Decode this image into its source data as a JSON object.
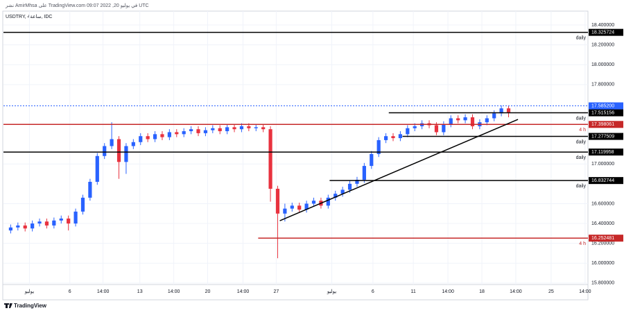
{
  "chart_data": {
    "type": "candlestick",
    "publisher": "نشر AmirMhsa على TradingView.com في يوليو 20, 2022 09:07 UTC",
    "title": "USDTRY, 4ساعة, IDC",
    "brand": "TradingView",
    "up_color": "#2962ff",
    "down_color": "#e8323f",
    "grid": true,
    "xlim": [
      -1,
      80
    ],
    "ylim": [
      15.785,
      18.442
    ],
    "xticks": [
      {
        "value": 2.6,
        "label": "يوليو"
      },
      {
        "value": 8.2,
        "label": "6"
      },
      {
        "value": 12.8,
        "label": "14:00"
      },
      {
        "value": 17.9,
        "label": "13"
      },
      {
        "value": 22.6,
        "label": "14:00"
      },
      {
        "value": 27.3,
        "label": "20"
      },
      {
        "value": 32.2,
        "label": "14:00"
      },
      {
        "value": 36.8,
        "label": "27"
      },
      {
        "value": 44.5,
        "label": "يوليو"
      },
      {
        "value": 50.2,
        "label": "6"
      },
      {
        "value": 55.8,
        "label": "11"
      },
      {
        "value": 60.6,
        "label": "14:00"
      },
      {
        "value": 65.3,
        "label": "18"
      },
      {
        "value": 70.0,
        "label": "14:00"
      },
      {
        "value": 74.9,
        "label": "25"
      },
      {
        "value": 79.6,
        "label": "14:00"
      }
    ],
    "yticks": [
      {
        "value": 18.4,
        "label": "18.400000"
      },
      {
        "value": 18.2,
        "label": "18.200000"
      },
      {
        "value": 18.0,
        "label": "18.000000"
      },
      {
        "value": 17.8,
        "label": "17.800000"
      },
      {
        "value": 17.0,
        "label": "17.000000"
      },
      {
        "value": 16.6,
        "label": "16.600000"
      },
      {
        "value": 16.4,
        "label": "16.400000"
      },
      {
        "value": 16.2,
        "label": "16.200000"
      },
      {
        "value": 16.0,
        "label": "16.000000"
      },
      {
        "value": 15.8,
        "label": "15.800000"
      }
    ],
    "open": [
      16.33,
      16.36,
      16.38,
      16.35,
      16.4,
      16.42,
      16.38,
      16.43,
      16.45,
      16.4,
      16.52,
      16.66,
      16.82,
      17.08,
      17.18,
      17.25,
      17.02,
      17.18,
      17.22,
      17.28,
      17.25,
      17.3,
      17.27,
      17.32,
      17.3,
      17.33,
      17.35,
      17.31,
      17.34,
      17.36,
      17.33,
      17.37,
      17.35,
      17.38,
      17.36,
      17.37,
      17.35,
      16.75,
      16.5,
      16.55,
      16.58,
      16.54,
      16.6,
      16.63,
      16.58,
      16.66,
      16.7,
      16.74,
      16.8,
      16.84,
      16.98,
      17.1,
      17.24,
      17.28,
      17.26,
      17.3,
      17.36,
      17.38,
      17.41,
      17.39,
      17.32,
      17.4,
      17.46,
      17.44,
      17.47,
      17.38,
      17.42,
      17.46,
      17.51,
      17.56
    ],
    "high": [
      16.39,
      16.41,
      16.41,
      16.43,
      16.45,
      16.45,
      16.46,
      16.48,
      16.48,
      16.55,
      16.69,
      16.85,
      17.11,
      17.21,
      17.42,
      17.28,
      17.21,
      17.25,
      17.31,
      17.31,
      17.33,
      17.33,
      17.35,
      17.35,
      17.36,
      17.38,
      17.38,
      17.37,
      17.39,
      17.39,
      17.4,
      17.4,
      17.41,
      17.41,
      17.4,
      17.4,
      17.38,
      16.78,
      16.6,
      16.61,
      16.61,
      16.63,
      16.66,
      16.66,
      16.69,
      16.73,
      16.77,
      16.83,
      16.87,
      17.01,
      17.13,
      17.27,
      17.31,
      17.31,
      17.33,
      17.39,
      17.41,
      17.44,
      17.44,
      17.42,
      17.43,
      17.49,
      17.49,
      17.5,
      17.5,
      17.45,
      17.49,
      17.54,
      17.59,
      17.59
    ],
    "low": [
      16.3,
      16.33,
      16.32,
      16.32,
      16.37,
      16.35,
      16.35,
      16.4,
      16.33,
      16.37,
      16.49,
      16.63,
      16.79,
      17.05,
      17.15,
      16.85,
      16.9,
      17.15,
      17.19,
      17.22,
      17.22,
      17.24,
      17.24,
      17.27,
      17.27,
      17.3,
      17.28,
      17.28,
      17.31,
      17.3,
      17.3,
      17.32,
      17.32,
      17.33,
      17.33,
      17.32,
      16.62,
      16.05,
      16.42,
      16.52,
      16.51,
      16.51,
      16.57,
      16.55,
      16.55,
      16.63,
      16.67,
      16.71,
      16.77,
      16.81,
      16.95,
      17.07,
      17.21,
      17.23,
      17.23,
      17.27,
      17.33,
      17.35,
      17.36,
      17.29,
      17.29,
      17.37,
      17.41,
      17.41,
      17.35,
      17.35,
      17.39,
      17.43,
      17.48,
      17.47
    ],
    "close": [
      16.36,
      16.38,
      16.35,
      16.4,
      16.42,
      16.38,
      16.43,
      16.45,
      16.4,
      16.52,
      16.66,
      16.82,
      17.08,
      17.18,
      17.25,
      17.02,
      17.18,
      17.22,
      17.28,
      17.25,
      17.3,
      17.27,
      17.32,
      17.3,
      17.33,
      17.35,
      17.31,
      17.34,
      17.36,
      17.33,
      17.37,
      17.35,
      17.38,
      17.36,
      17.37,
      17.35,
      16.75,
      16.5,
      16.55,
      16.58,
      16.54,
      16.6,
      16.63,
      16.58,
      16.66,
      16.7,
      16.74,
      16.8,
      16.84,
      16.98,
      17.1,
      17.24,
      17.28,
      17.26,
      17.3,
      17.36,
      17.38,
      17.41,
      17.39,
      17.32,
      17.4,
      17.46,
      17.44,
      17.47,
      17.38,
      17.42,
      17.46,
      17.51,
      17.56,
      17.52
    ],
    "levels": [
      {
        "price": 18.325724,
        "label": "18.325724",
        "color": "#000000",
        "from": -1,
        "tag": "daily"
      },
      {
        "price": 17.5852,
        "label": "17.585200",
        "color": "#2962ff",
        "from": -1,
        "dashed": true
      },
      {
        "price": 17.515156,
        "label": "17.515156",
        "color": "#000000",
        "from": 52.4,
        "tag": "daily"
      },
      {
        "price": 17.398061,
        "label": "17.398061",
        "color": "#c62828",
        "from": -1,
        "tag": "4 h"
      },
      {
        "price": 17.277509,
        "label": "17.277509",
        "color": "#000000",
        "from": 54.3,
        "tag": "daily"
      },
      {
        "price": 17.119958,
        "label": "17.119958",
        "color": "#000000",
        "from": -1,
        "tag": "daily"
      },
      {
        "price": 16.832744,
        "label": "16.832744",
        "color": "#000000",
        "from": 44.2,
        "tag": "daily"
      },
      {
        "price": 16.252481,
        "label": "16.252481",
        "color": "#c62828",
        "from": 34.3,
        "tag": "4 h"
      }
    ],
    "trendlines": [
      {
        "x": [
          37.3,
          70.3
        ],
        "y": [
          16.428,
          17.449
        ],
        "color": "#000000"
      }
    ]
  }
}
